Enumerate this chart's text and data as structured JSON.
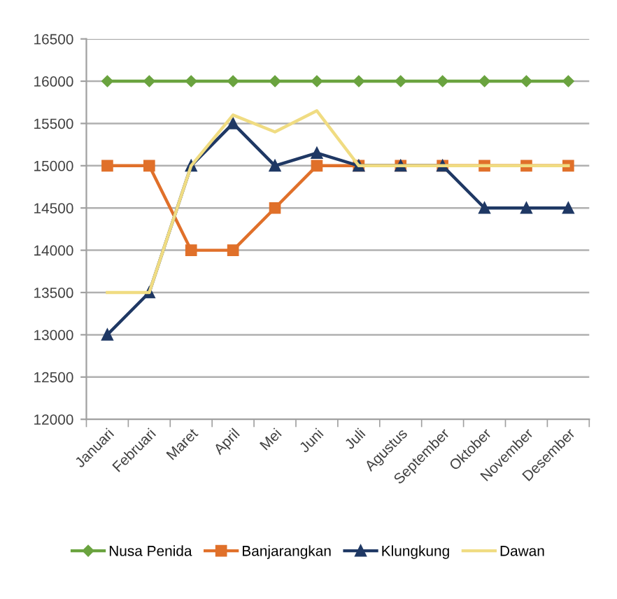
{
  "chart_data": {
    "type": "line",
    "categories": [
      "Januari",
      "Februari",
      "Maret",
      "April",
      "Mei",
      "Juni",
      "Juli",
      "Agustus",
      "September",
      "Oktober",
      "November",
      "Desember"
    ],
    "series": [
      {
        "name": "Nusa Penida",
        "color": "#6aa33f",
        "marker": "diamond",
        "values": [
          16000,
          16000,
          16000,
          16000,
          16000,
          16000,
          16000,
          16000,
          16000,
          16000,
          16000,
          16000
        ]
      },
      {
        "name": "Banjarangkan",
        "color": "#e0702a",
        "marker": "square",
        "values": [
          15000,
          15000,
          14000,
          14000,
          14500,
          15000,
          15000,
          15000,
          15000,
          15000,
          15000,
          15000
        ]
      },
      {
        "name": "Klungkung",
        "color": "#1f3864",
        "marker": "triangle",
        "values": [
          13000,
          13500,
          15000,
          15500,
          15000,
          15150,
          15000,
          15000,
          15000,
          14500,
          14500,
          14500
        ]
      },
      {
        "name": "Dawan",
        "color": "#f0dc82",
        "marker": "none",
        "values": [
          13500,
          13500,
          15000,
          15600,
          15400,
          15650,
          15000,
          15000,
          15000,
          15000,
          15000,
          15000
        ]
      }
    ],
    "ylim": [
      12000,
      16500
    ],
    "yticks": [
      12000,
      12500,
      13000,
      13500,
      14000,
      14500,
      15000,
      15500,
      16000,
      16500
    ],
    "grid": "y",
    "legend": "bottom",
    "line_style": "solid"
  }
}
